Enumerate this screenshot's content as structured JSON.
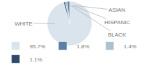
{
  "chart_data": {
    "type": "pie",
    "categories": [
      "WHITE",
      "ASIAN",
      "HISPANIC",
      "BLACK"
    ],
    "values": [
      95.7,
      1.8,
      1.4,
      1.1
    ],
    "value_labels": [
      "95.7%",
      "1.8%",
      "1.4%",
      "1.1%"
    ],
    "colors": [
      "#d9e4ed",
      "#5b7fa6",
      "#adc0d0",
      "#2d4a6b"
    ],
    "legend": "bottom left"
  }
}
